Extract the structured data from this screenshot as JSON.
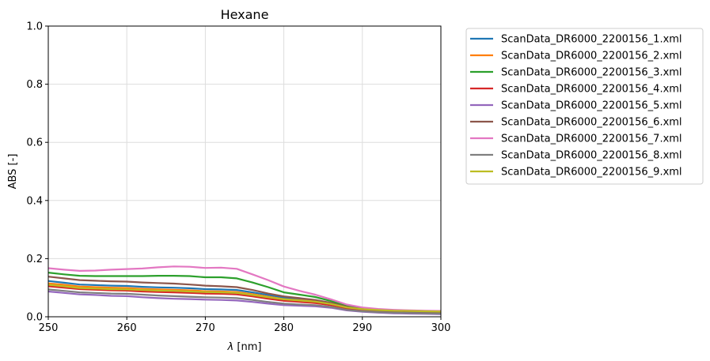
{
  "chart_data": {
    "type": "line",
    "title": "Hexane",
    "xlabel_symbol": "λ",
    "xlabel_unit": " [nm]",
    "ylabel": "ABS [-]",
    "xlim": [
      250,
      300
    ],
    "ylim": [
      0,
      1.0
    ],
    "xticks": [
      "250",
      "260",
      "270",
      "280",
      "290",
      "300"
    ],
    "yticks": [
      "0.0",
      "0.2",
      "0.4",
      "0.6",
      "0.8",
      "1.0"
    ],
    "grid": true,
    "legend_position": "outside-top-right",
    "x": [
      250,
      252,
      254,
      256,
      258,
      260,
      262,
      264,
      266,
      268,
      270,
      272,
      274,
      276,
      278,
      280,
      282,
      284,
      286,
      288,
      290,
      292,
      294,
      296,
      298,
      300
    ],
    "series": [
      {
        "name": "ScanData_DR6000_2200156_1.xml",
        "color": "#1f77b4",
        "values": [
          0.123,
          0.117,
          0.111,
          0.109,
          0.107,
          0.106,
          0.103,
          0.101,
          0.1,
          0.098,
          0.095,
          0.094,
          0.092,
          0.084,
          0.075,
          0.066,
          0.061,
          0.056,
          0.047,
          0.034,
          0.027,
          0.023,
          0.021,
          0.019,
          0.018,
          0.017
        ]
      },
      {
        "name": "ScanData_DR6000_2200156_2.xml",
        "color": "#ff7f0e",
        "values": [
          0.115,
          0.11,
          0.104,
          0.102,
          0.1,
          0.099,
          0.096,
          0.094,
          0.093,
          0.091,
          0.088,
          0.087,
          0.085,
          0.078,
          0.069,
          0.061,
          0.057,
          0.053,
          0.045,
          0.033,
          0.027,
          0.024,
          0.022,
          0.021,
          0.02,
          0.019
        ]
      },
      {
        "name": "ScanData_DR6000_2200156_3.xml",
        "color": "#2ca02c",
        "values": [
          0.152,
          0.146,
          0.141,
          0.14,
          0.14,
          0.14,
          0.14,
          0.141,
          0.141,
          0.14,
          0.136,
          0.136,
          0.132,
          0.118,
          0.102,
          0.084,
          0.076,
          0.068,
          0.054,
          0.037,
          0.028,
          0.024,
          0.021,
          0.019,
          0.018,
          0.017
        ]
      },
      {
        "name": "ScanData_DR6000_2200156_4.xml",
        "color": "#d62728",
        "values": [
          0.105,
          0.1,
          0.095,
          0.093,
          0.091,
          0.09,
          0.087,
          0.085,
          0.084,
          0.082,
          0.08,
          0.079,
          0.077,
          0.07,
          0.062,
          0.055,
          0.051,
          0.047,
          0.04,
          0.029,
          0.023,
          0.02,
          0.018,
          0.017,
          0.016,
          0.015
        ]
      },
      {
        "name": "ScanData_DR6000_2200156_5.xml",
        "color": "#9467bd",
        "values": [
          0.087,
          0.082,
          0.077,
          0.075,
          0.072,
          0.071,
          0.067,
          0.064,
          0.062,
          0.061,
          0.059,
          0.058,
          0.056,
          0.051,
          0.045,
          0.04,
          0.038,
          0.036,
          0.031,
          0.022,
          0.017,
          0.014,
          0.012,
          0.011,
          0.01,
          0.009
        ]
      },
      {
        "name": "ScanData_DR6000_2200156_6.xml",
        "color": "#8c564b",
        "values": [
          0.138,
          0.132,
          0.126,
          0.124,
          0.122,
          0.121,
          0.118,
          0.116,
          0.114,
          0.111,
          0.107,
          0.105,
          0.102,
          0.092,
          0.08,
          0.07,
          0.064,
          0.058,
          0.048,
          0.034,
          0.026,
          0.022,
          0.019,
          0.017,
          0.016,
          0.015
        ]
      },
      {
        "name": "ScanData_DR6000_2200156_7.xml",
        "color": "#e377c2",
        "values": [
          0.167,
          0.162,
          0.158,
          0.159,
          0.162,
          0.164,
          0.166,
          0.17,
          0.173,
          0.172,
          0.168,
          0.169,
          0.165,
          0.146,
          0.126,
          0.104,
          0.089,
          0.076,
          0.06,
          0.042,
          0.032,
          0.027,
          0.024,
          0.022,
          0.021,
          0.02
        ]
      },
      {
        "name": "ScanData_DR6000_2200156_8.xml",
        "color": "#7f7f7f",
        "values": [
          0.094,
          0.089,
          0.084,
          0.082,
          0.08,
          0.079,
          0.076,
          0.073,
          0.071,
          0.069,
          0.067,
          0.066,
          0.064,
          0.058,
          0.051,
          0.045,
          0.042,
          0.04,
          0.034,
          0.024,
          0.019,
          0.016,
          0.014,
          0.013,
          0.012,
          0.011
        ]
      },
      {
        "name": "ScanData_DR6000_2200156_9.xml",
        "color": "#bcbd22",
        "values": [
          0.11,
          0.105,
          0.099,
          0.097,
          0.095,
          0.094,
          0.092,
          0.09,
          0.089,
          0.087,
          0.085,
          0.084,
          0.082,
          0.075,
          0.067,
          0.06,
          0.056,
          0.052,
          0.044,
          0.032,
          0.026,
          0.023,
          0.021,
          0.02,
          0.019,
          0.018
        ]
      }
    ]
  }
}
